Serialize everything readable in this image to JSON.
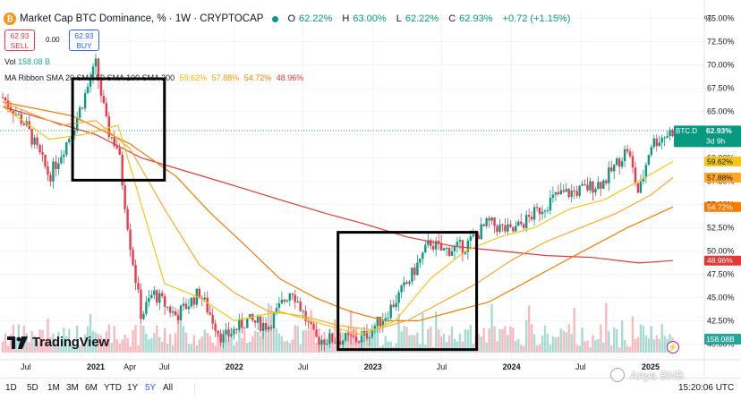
{
  "header": {
    "symbol_title": "Market Cap BTC Dominance, % · 1W · CRYPTOCAP",
    "ohlc": [
      {
        "k": "O",
        "v": "62.22%"
      },
      {
        "k": "H",
        "v": "63.00%"
      },
      {
        "k": "L",
        "v": "62.22%"
      },
      {
        "k": "C",
        "v": "62.93%"
      },
      {
        "k": "",
        "v": "+0.72 (+1.15%)"
      }
    ]
  },
  "trade": {
    "sell_price": "62.93",
    "sell_label": "SELL",
    "spread": "0.00",
    "buy_price": "62.93",
    "buy_label": "BUY"
  },
  "indicators": {
    "volume_label": "Vol",
    "volume_value": "158.08 B",
    "ribbon_label": "MA Ribbon SMA 20 SMA 50 SMA 100 SMA 200",
    "ribbon_values": [
      {
        "v": "59.62%",
        "color": "#f5b800"
      },
      {
        "v": "57.88%",
        "color": "#ff9800"
      },
      {
        "v": "54.72%",
        "color": "#f57c00"
      },
      {
        "v": "48.96%",
        "color": "#e53935"
      }
    ]
  },
  "scale_unit": "%",
  "price_tags": [
    {
      "id": "btc-d",
      "lines": [
        "BTC.D",
        "62.93%",
        "3d 9h"
      ],
      "value": 62.93,
      "bg": "#089981",
      "fg": "#ffffff"
    },
    {
      "id": "sma20",
      "lines": [
        "59.62%"
      ],
      "value": 59.62,
      "bg": "#f5c518",
      "fg": "#131722"
    },
    {
      "id": "sma50",
      "lines": [
        "57.88%"
      ],
      "value": 57.88,
      "bg": "#ffa726",
      "fg": "#131722"
    },
    {
      "id": "sma100",
      "lines": [
        "54.72%"
      ],
      "value": 54.72,
      "bg": "#f57c00",
      "fg": "#ffffff"
    },
    {
      "id": "sma200",
      "lines": [
        "48.96%"
      ],
      "value": 48.96,
      "bg": "#e53935",
      "fg": "#ffffff"
    }
  ],
  "volume_tag": "158.08B",
  "time_axis": [
    "Jul",
    "2021",
    "Apr",
    "Jul",
    "2022",
    "Jul",
    "2023",
    "Jul",
    "2024",
    "Jul",
    "2025"
  ],
  "range_buttons": [
    {
      "label": "1D",
      "active": false
    },
    {
      "label": "5D",
      "active": false
    },
    {
      "label": "1M",
      "active": false
    },
    {
      "label": "3M",
      "active": false
    },
    {
      "label": "6M",
      "active": false
    },
    {
      "label": "YTD",
      "active": false
    },
    {
      "label": "1Y",
      "active": false
    },
    {
      "label": "5Y",
      "active": true
    },
    {
      "label": "All",
      "active": false
    }
  ],
  "clock": "15:20:06 UTC",
  "logo_text": "TradingView",
  "watermark_text": "Anya BNB",
  "chart_data": {
    "type": "candlestick",
    "interval": "1W",
    "y_unit": "%",
    "y_range": [
      38.5,
      76
    ],
    "y_ticks": [
      40,
      42.5,
      45,
      47.5,
      50,
      52.5,
      55,
      57.5,
      60,
      62.5,
      65,
      67.5,
      70,
      72.5,
      75
    ],
    "y_tick_labels": [
      "40.00%",
      "42.50%",
      "45.00%",
      "47.50%",
      "50.00%",
      "52.50%",
      "55.00%",
      "57.50%",
      "60.00%",
      "62.50%",
      "65.00%",
      "67.50%",
      "70.00%",
      "72.50%",
      "75.00%"
    ],
    "x_ticks": [
      {
        "label": "Jul",
        "date": "2020-07"
      },
      {
        "label": "2021",
        "date": "2021-01"
      },
      {
        "label": "Apr",
        "date": "2021-04"
      },
      {
        "label": "Jul",
        "date": "2021-07"
      },
      {
        "label": "2022",
        "date": "2022-01"
      },
      {
        "label": "Jul",
        "date": "2022-07"
      },
      {
        "label": "2023",
        "date": "2023-01"
      },
      {
        "label": "Jul",
        "date": "2023-07"
      },
      {
        "label": "2024",
        "date": "2024-01"
      },
      {
        "label": "Jul",
        "date": "2024-07"
      },
      {
        "label": "2025",
        "date": "2025-01"
      }
    ],
    "close_path": [
      [
        "2020-05",
        66.5
      ],
      [
        "2020-07",
        63.5
      ],
      [
        "2020-09",
        58.0
      ],
      [
        "2020-11",
        63.0
      ],
      [
        "2021-01",
        70.0
      ],
      [
        "2021-02",
        63.0
      ],
      [
        "2021-03",
        61.0
      ],
      [
        "2021-04",
        51.0
      ],
      [
        "2021-05",
        43.0
      ],
      [
        "2021-06",
        45.5
      ],
      [
        "2021-08",
        43.0
      ],
      [
        "2021-10",
        45.5
      ],
      [
        "2021-12",
        40.5
      ],
      [
        "2022-02",
        42.5
      ],
      [
        "2022-04",
        42.0
      ],
      [
        "2022-06",
        46.0
      ],
      [
        "2022-08",
        40.5
      ],
      [
        "2022-10",
        40.5
      ],
      [
        "2022-12",
        40.5
      ],
      [
        "2023-02",
        43.0
      ],
      [
        "2023-04",
        46.5
      ],
      [
        "2023-06",
        51.0
      ],
      [
        "2023-07",
        50.0
      ],
      [
        "2023-09",
        50.5
      ],
      [
        "2023-11",
        53.0
      ],
      [
        "2024-01",
        52.0
      ],
      [
        "2024-03",
        54.0
      ],
      [
        "2024-05",
        56.0
      ],
      [
        "2024-07",
        56.5
      ],
      [
        "2024-09",
        57.5
      ],
      [
        "2024-11",
        61.0
      ],
      [
        "2024-12",
        56.0
      ],
      [
        "2025-01",
        61.5
      ],
      [
        "2025-03",
        62.93
      ]
    ],
    "sma_20": [
      [
        "2020-05",
        65.5
      ],
      [
        "2020-09",
        62.0
      ],
      [
        "2020-12",
        62.5
      ],
      [
        "2021-03",
        63.5
      ],
      [
        "2021-05",
        55.0
      ],
      [
        "2021-07",
        46.5
      ],
      [
        "2021-10",
        45.0
      ],
      [
        "2022-01",
        42.5
      ],
      [
        "2022-05",
        43.5
      ],
      [
        "2022-09",
        42.0
      ],
      [
        "2022-12",
        41.0
      ],
      [
        "2023-03",
        42.5
      ],
      [
        "2023-06",
        47.0
      ],
      [
        "2023-09",
        50.0
      ],
      [
        "2023-12",
        51.5
      ],
      [
        "2024-03",
        52.5
      ],
      [
        "2024-06",
        54.5
      ],
      [
        "2024-09",
        55.5
      ],
      [
        "2024-12",
        57.5
      ],
      [
        "2025-03",
        59.62
      ]
    ],
    "sma_50": [
      [
        "2020-05",
        66.0
      ],
      [
        "2020-10",
        63.5
      ],
      [
        "2021-01",
        64.0
      ],
      [
        "2021-04",
        61.0
      ],
      [
        "2021-07",
        54.5
      ],
      [
        "2021-10",
        48.5
      ],
      [
        "2022-01",
        45.5
      ],
      [
        "2022-04",
        43.5
      ],
      [
        "2022-07",
        43.0
      ],
      [
        "2022-10",
        42.0
      ],
      [
        "2023-01",
        41.5
      ],
      [
        "2023-04",
        42.5
      ],
      [
        "2023-07",
        44.5
      ],
      [
        "2023-10",
        46.5
      ],
      [
        "2024-01",
        49.0
      ],
      [
        "2024-04",
        51.0
      ],
      [
        "2024-07",
        52.5
      ],
      [
        "2024-10",
        54.0
      ],
      [
        "2025-01",
        56.0
      ],
      [
        "2025-03",
        57.88
      ]
    ],
    "sma_100": [
      [
        "2020-05",
        66.0
      ],
      [
        "2020-11",
        64.5
      ],
      [
        "2021-04",
        61.5
      ],
      [
        "2021-08",
        58.0
      ],
      [
        "2021-11",
        54.0
      ],
      [
        "2022-02",
        50.5
      ],
      [
        "2022-05",
        47.0
      ],
      [
        "2022-08",
        45.0
      ],
      [
        "2022-11",
        43.5
      ],
      [
        "2023-02",
        42.5
      ],
      [
        "2023-05",
        42.5
      ],
      [
        "2023-08",
        43.5
      ],
      [
        "2023-11",
        44.5
      ],
      [
        "2024-02",
        46.5
      ],
      [
        "2024-05",
        48.5
      ],
      [
        "2024-08",
        50.5
      ],
      [
        "2024-11",
        52.5
      ],
      [
        "2025-03",
        54.72
      ]
    ],
    "sma_200": [
      [
        "2020-05",
        65.5
      ],
      [
        "2020-09",
        64.0
      ],
      [
        "2021-01",
        62.5
      ],
      [
        "2021-05",
        60.0
      ],
      [
        "2021-09",
        58.5
      ],
      [
        "2022-01",
        57.0
      ],
      [
        "2022-05",
        55.5
      ],
      [
        "2022-09",
        54.0
      ],
      [
        "2022-12",
        53.0
      ],
      [
        "2023-04",
        51.5
      ],
      [
        "2023-08",
        50.5
      ],
      [
        "2023-12",
        50.0
      ],
      [
        "2024-04",
        49.5
      ],
      [
        "2024-08",
        49.3
      ],
      [
        "2024-12",
        48.7
      ],
      [
        "2025-03",
        48.96
      ]
    ],
    "annotation_boxes": [
      {
        "from": "2020-11",
        "to": "2021-07",
        "y_low": 57.6,
        "y_high": 68.5
      },
      {
        "from": "2022-10",
        "to": "2023-10",
        "y_low": 39.4,
        "y_high": 52.0
      }
    ],
    "volume_last": "158.08B"
  }
}
